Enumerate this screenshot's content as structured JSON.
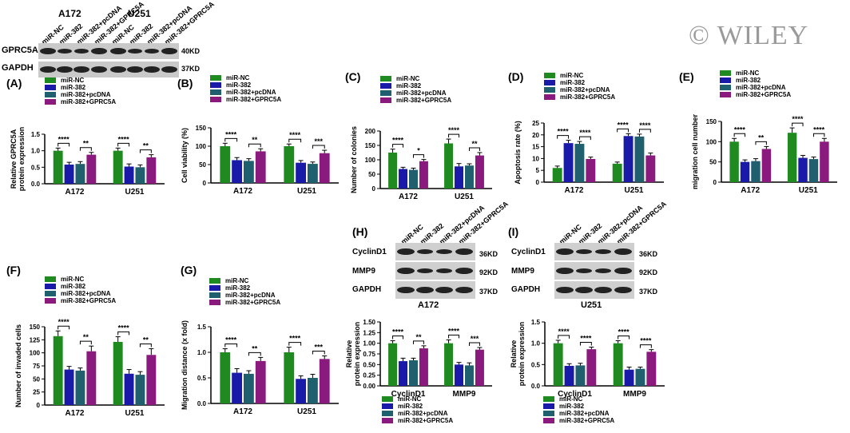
{
  "watermark": "© WILEY",
  "colors": {
    "miR-NC": "#1f8a1f",
    "miR-382": "#1a1aa8",
    "miR-382+pcDNA": "#1f5f6e",
    "miR-382+GPRC5A": "#8b1a7e"
  },
  "legend": [
    "miR-NC",
    "miR-382",
    "miR-382+pcDNA",
    "miR-382+GPRC5A"
  ],
  "blot_top": {
    "cells": [
      "A172",
      "U251"
    ],
    "lanes": [
      "miR-NC",
      "miR-382",
      "miR-382+pcDNA",
      "miR-382+GPRC5A"
    ],
    "rows": [
      {
        "name": "GPRC5A",
        "kd": "40KD"
      },
      {
        "name": "GAPDH",
        "kd": "37KD"
      }
    ]
  },
  "blot_H": {
    "title": "(H)",
    "cell": "A172",
    "lanes": [
      "miR-NC",
      "miR-382",
      "miR-382+pcDNA",
      "miR-382+GPRC5A"
    ],
    "rows": [
      {
        "name": "CyclinD1",
        "kd": "36KD"
      },
      {
        "name": "MMP9",
        "kd": "92KD"
      },
      {
        "name": "GAPDH",
        "kd": "37KD"
      }
    ]
  },
  "blot_I": {
    "title": "(I)",
    "cell": "U251",
    "lanes": [
      "miR-NC",
      "miR-382",
      "miR-382+pcDNA",
      "miR-382+GPRC5A"
    ],
    "rows": [
      {
        "name": "CyclinD1",
        "kd": "36KD"
      },
      {
        "name": "MMP9",
        "kd": "92KD"
      },
      {
        "name": "GAPDH",
        "kd": "37KD"
      }
    ]
  },
  "chart_data": [
    {
      "panel": "(A)",
      "type": "bar",
      "ylabel": "Relative GPRC5A protein expression",
      "categories": [
        "A172",
        "U251"
      ],
      "ylim": [
        0,
        1.5
      ],
      "yticks": [
        0.0,
        0.5,
        1.0,
        1.5
      ],
      "tick_decimals": 1,
      "series": [
        {
          "name": "miR-NC",
          "values": [
            1.0,
            1.0
          ],
          "errors": [
            0.08,
            0.08
          ]
        },
        {
          "name": "miR-382",
          "values": [
            0.58,
            0.52
          ],
          "errors": [
            0.07,
            0.08
          ]
        },
        {
          "name": "miR-382+pcDNA",
          "values": [
            0.6,
            0.5
          ],
          "errors": [
            0.07,
            0.07
          ]
        },
        {
          "name": "miR-382+GPRC5A",
          "values": [
            0.88,
            0.8
          ],
          "errors": [
            0.07,
            0.08
          ]
        }
      ],
      "annotations": [
        {
          "category": 0,
          "from": 0,
          "to": 1,
          "text": "****"
        },
        {
          "category": 0,
          "from": 2,
          "to": 3,
          "text": "**"
        },
        {
          "category": 1,
          "from": 0,
          "to": 1,
          "text": "****"
        },
        {
          "category": 1,
          "from": 2,
          "to": 3,
          "text": "**"
        }
      ]
    },
    {
      "panel": "(B)",
      "type": "bar",
      "ylabel": "Cell viability (%)",
      "categories": [
        "A172",
        "U251"
      ],
      "ylim": [
        0,
        150
      ],
      "yticks": [
        0,
        50,
        100,
        150
      ],
      "tick_decimals": 0,
      "series": [
        {
          "name": "miR-NC",
          "values": [
            100,
            100
          ],
          "errors": [
            8,
            6
          ]
        },
        {
          "name": "miR-382",
          "values": [
            62,
            55
          ],
          "errors": [
            7,
            6
          ]
        },
        {
          "name": "miR-382+pcDNA",
          "values": [
            60,
            52
          ],
          "errors": [
            6,
            5
          ]
        },
        {
          "name": "miR-382+GPRC5A",
          "values": [
            86,
            81
          ],
          "errors": [
            7,
            8
          ]
        }
      ],
      "annotations": [
        {
          "category": 0,
          "from": 0,
          "to": 1,
          "text": "****"
        },
        {
          "category": 0,
          "from": 2,
          "to": 3,
          "text": "**"
        },
        {
          "category": 1,
          "from": 0,
          "to": 1,
          "text": "****"
        },
        {
          "category": 1,
          "from": 2,
          "to": 3,
          "text": "***"
        }
      ]
    },
    {
      "panel": "(C)",
      "type": "bar",
      "ylabel": "Number of colonies",
      "categories": [
        "A172",
        "U251"
      ],
      "ylim": [
        0,
        200
      ],
      "yticks": [
        0,
        50,
        100,
        150,
        200
      ],
      "tick_decimals": 0,
      "series": [
        {
          "name": "miR-NC",
          "values": [
            125,
            157
          ],
          "errors": [
            12,
            15
          ]
        },
        {
          "name": "miR-382",
          "values": [
            68,
            77
          ],
          "errors": [
            6,
            10
          ]
        },
        {
          "name": "miR-382+pcDNA",
          "values": [
            65,
            80
          ],
          "errors": [
            6,
            6
          ]
        },
        {
          "name": "miR-382+GPRC5A",
          "values": [
            95,
            115
          ],
          "errors": [
            6,
            10
          ]
        }
      ],
      "annotations": [
        {
          "category": 0,
          "from": 0,
          "to": 1,
          "text": "****"
        },
        {
          "category": 0,
          "from": 2,
          "to": 3,
          "text": "*"
        },
        {
          "category": 1,
          "from": 0,
          "to": 1,
          "text": "****"
        },
        {
          "category": 1,
          "from": 2,
          "to": 3,
          "text": "**"
        }
      ]
    },
    {
      "panel": "(D)",
      "type": "bar",
      "ylabel": "Apoptosis rate (%)",
      "categories": [
        "A172",
        "U251"
      ],
      "ylim": [
        0,
        25
      ],
      "yticks": [
        0,
        5,
        10,
        15,
        20,
        25
      ],
      "tick_decimals": 0,
      "series": [
        {
          "name": "miR-NC",
          "values": [
            6,
            7.8
          ],
          "errors": [
            0.8,
            0.7
          ]
        },
        {
          "name": "miR-382",
          "values": [
            16.5,
            19.5
          ],
          "errors": [
            1.2,
            1.0
          ]
        },
        {
          "name": "miR-382+pcDNA",
          "values": [
            16.2,
            19.3
          ],
          "errors": [
            1.0,
            1.0
          ]
        },
        {
          "name": "miR-382+GPRC5A",
          "values": [
            9.8,
            11.3
          ],
          "errors": [
            0.8,
            1.0
          ]
        }
      ],
      "annotations": [
        {
          "category": 0,
          "from": 0,
          "to": 1,
          "text": "****"
        },
        {
          "category": 0,
          "from": 2,
          "to": 3,
          "text": "****"
        },
        {
          "category": 1,
          "from": 0,
          "to": 1,
          "text": "****"
        },
        {
          "category": 1,
          "from": 2,
          "to": 3,
          "text": "****"
        }
      ]
    },
    {
      "panel": "(E)",
      "type": "bar",
      "ylabel": "migration cell number",
      "categories": [
        "A172",
        "U251"
      ],
      "ylim": [
        0,
        150
      ],
      "yticks": [
        0,
        50,
        100,
        150
      ],
      "tick_decimals": 0,
      "series": [
        {
          "name": "miR-NC",
          "values": [
            100,
            122
          ],
          "errors": [
            8,
            12
          ]
        },
        {
          "name": "miR-382",
          "values": [
            50,
            60
          ],
          "errors": [
            5,
            6
          ]
        },
        {
          "name": "miR-382+pcDNA",
          "values": [
            52,
            57
          ],
          "errors": [
            6,
            5
          ]
        },
        {
          "name": "miR-382+GPRC5A",
          "values": [
            82,
            100
          ],
          "errors": [
            6,
            8
          ]
        }
      ],
      "annotations": [
        {
          "category": 0,
          "from": 0,
          "to": 1,
          "text": "****"
        },
        {
          "category": 0,
          "from": 2,
          "to": 3,
          "text": "**"
        },
        {
          "category": 1,
          "from": 0,
          "to": 1,
          "text": "****"
        },
        {
          "category": 1,
          "from": 2,
          "to": 3,
          "text": "****"
        }
      ]
    },
    {
      "panel": "(F)",
      "type": "bar",
      "ylabel": "Number of invaded cells",
      "categories": [
        "A172",
        "U251"
      ],
      "ylim": [
        0,
        150
      ],
      "yticks": [
        0,
        25,
        50,
        75,
        100,
        125,
        150
      ],
      "tick_decimals": 0,
      "series": [
        {
          "name": "miR-NC",
          "values": [
            132,
            121
          ],
          "errors": [
            10,
            10
          ]
        },
        {
          "name": "miR-382",
          "values": [
            68,
            60
          ],
          "errors": [
            6,
            8
          ]
        },
        {
          "name": "miR-382+pcDNA",
          "values": [
            66,
            58
          ],
          "errors": [
            5,
            6
          ]
        },
        {
          "name": "miR-382+GPRC5A",
          "values": [
            103,
            96
          ],
          "errors": [
            10,
            12
          ]
        }
      ],
      "annotations": [
        {
          "category": 0,
          "from": 0,
          "to": 1,
          "text": "****"
        },
        {
          "category": 0,
          "from": 2,
          "to": 3,
          "text": "**"
        },
        {
          "category": 1,
          "from": 0,
          "to": 1,
          "text": "****"
        },
        {
          "category": 1,
          "from": 2,
          "to": 3,
          "text": "**"
        }
      ]
    },
    {
      "panel": "(G)",
      "type": "bar",
      "ylabel": "Migration distance (x fold)",
      "categories": [
        "A172",
        "U251"
      ],
      "ylim": [
        0,
        1.5
      ],
      "yticks": [
        0.0,
        0.5,
        1.0,
        1.5
      ],
      "tick_decimals": 1,
      "series": [
        {
          "name": "miR-NC",
          "values": [
            1.0,
            1.0
          ],
          "errors": [
            0.07,
            0.1
          ]
        },
        {
          "name": "miR-382",
          "values": [
            0.6,
            0.48
          ],
          "errors": [
            0.08,
            0.06
          ]
        },
        {
          "name": "miR-382+pcDNA",
          "values": [
            0.58,
            0.5
          ],
          "errors": [
            0.06,
            0.07
          ]
        },
        {
          "name": "miR-382+GPRC5A",
          "values": [
            0.83,
            0.87
          ],
          "errors": [
            0.07,
            0.06
          ]
        }
      ],
      "annotations": [
        {
          "category": 0,
          "from": 0,
          "to": 1,
          "text": "****"
        },
        {
          "category": 0,
          "from": 2,
          "to": 3,
          "text": "**"
        },
        {
          "category": 1,
          "from": 0,
          "to": 1,
          "text": "****"
        },
        {
          "category": 1,
          "from": 2,
          "to": 3,
          "text": "***"
        }
      ]
    },
    {
      "panel": "(H)",
      "type": "bar",
      "ylabel": "Relative protein expression",
      "categories": [
        "CyclinD1",
        "MMP9"
      ],
      "ylim": [
        0,
        1.5
      ],
      "yticks": [
        0.0,
        0.25,
        0.5,
        0.75,
        1.0,
        1.25,
        1.5
      ],
      "tick_decimals": 2,
      "series": [
        {
          "name": "miR-NC",
          "values": [
            1.0,
            1.0
          ],
          "errors": [
            0.06,
            0.08
          ]
        },
        {
          "name": "miR-382",
          "values": [
            0.58,
            0.5
          ],
          "errors": [
            0.07,
            0.05
          ]
        },
        {
          "name": "miR-382+pcDNA",
          "values": [
            0.6,
            0.48
          ],
          "errors": [
            0.05,
            0.06
          ]
        },
        {
          "name": "miR-382+GPRC5A",
          "values": [
            0.88,
            0.85
          ],
          "errors": [
            0.06,
            0.05
          ]
        }
      ],
      "annotations": [
        {
          "category": 0,
          "from": 0,
          "to": 1,
          "text": "****"
        },
        {
          "category": 0,
          "from": 2,
          "to": 3,
          "text": "**"
        },
        {
          "category": 1,
          "from": 0,
          "to": 1,
          "text": "****"
        },
        {
          "category": 1,
          "from": 2,
          "to": 3,
          "text": "***"
        }
      ]
    },
    {
      "panel": "(I)",
      "type": "bar",
      "ylabel": "Relative protein expression",
      "categories": [
        "CyclinD1",
        "MMP9"
      ],
      "ylim": [
        0,
        1.5
      ],
      "yticks": [
        0.0,
        0.5,
        1.0,
        1.5
      ],
      "tick_decimals": 1,
      "series": [
        {
          "name": "miR-NC",
          "values": [
            1.0,
            1.0
          ],
          "errors": [
            0.07,
            0.06
          ]
        },
        {
          "name": "miR-382",
          "values": [
            0.47,
            0.38
          ],
          "errors": [
            0.05,
            0.06
          ]
        },
        {
          "name": "miR-382+pcDNA",
          "values": [
            0.48,
            0.4
          ],
          "errors": [
            0.05,
            0.04
          ]
        },
        {
          "name": "miR-382+GPRC5A",
          "values": [
            0.86,
            0.8
          ],
          "errors": [
            0.05,
            0.05
          ]
        }
      ],
      "annotations": [
        {
          "category": 0,
          "from": 0,
          "to": 1,
          "text": "****"
        },
        {
          "category": 0,
          "from": 2,
          "to": 3,
          "text": "****"
        },
        {
          "category": 1,
          "from": 0,
          "to": 1,
          "text": "****"
        },
        {
          "category": 1,
          "from": 2,
          "to": 3,
          "text": "****"
        }
      ]
    }
  ]
}
